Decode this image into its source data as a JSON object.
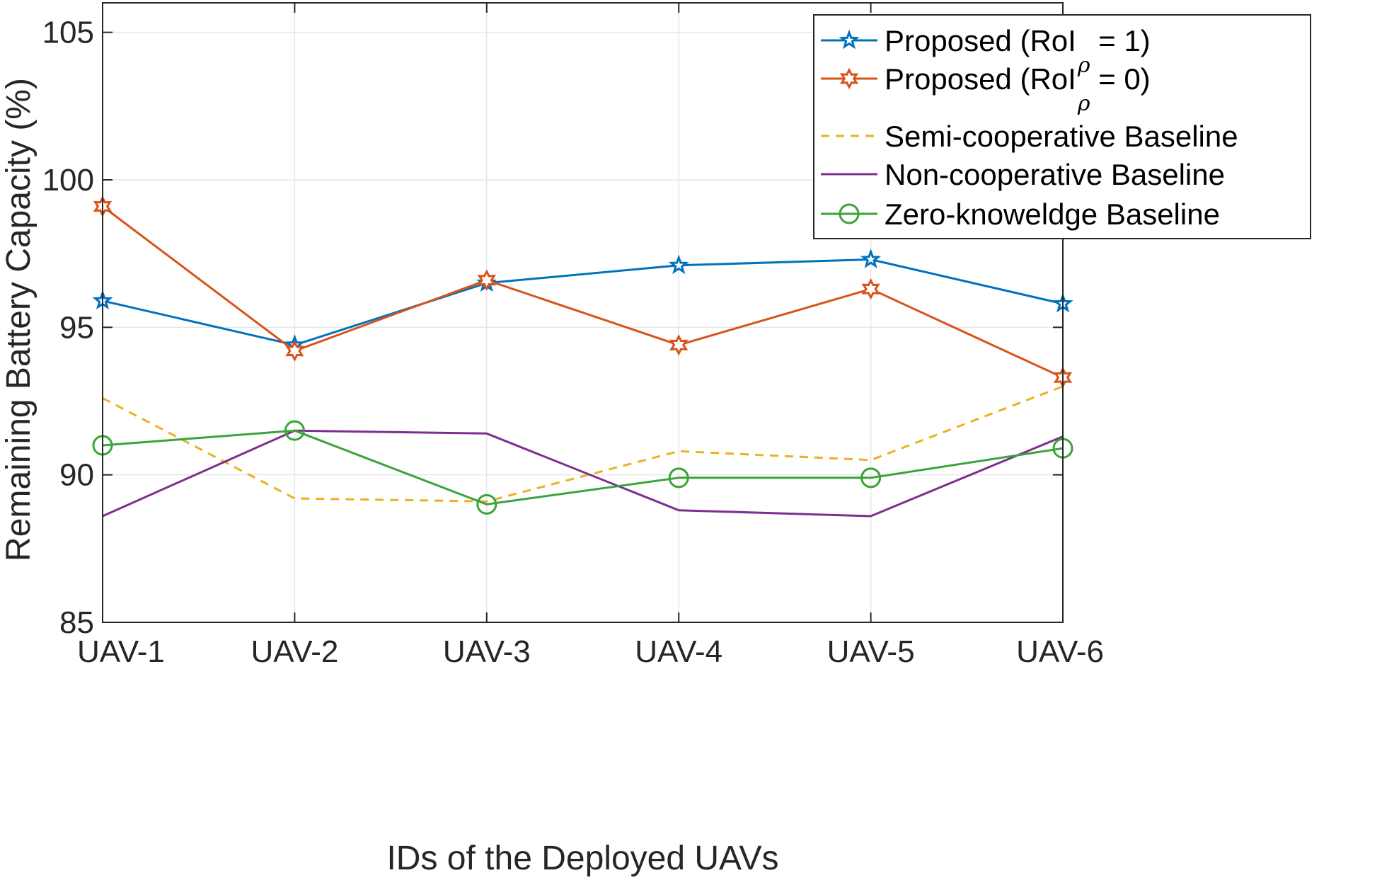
{
  "chart_data": {
    "type": "line",
    "title": "",
    "xlabel": "IDs of the Deployed UAVs",
    "ylabel": "Remaining Battery Capacity (%)",
    "categories": [
      "UAV-1",
      "UAV-2",
      "UAV-3",
      "UAV-4",
      "UAV-5",
      "UAV-6"
    ],
    "ylim": [
      85,
      106
    ],
    "yticks": [
      85,
      90,
      95,
      100,
      105
    ],
    "ytick_labels": [
      "85",
      "90",
      "95",
      "100",
      "105"
    ],
    "grid": true,
    "legend_position": "top-right",
    "series": [
      {
        "name": "Proposed (RoI_ρ = 1)",
        "legend_main": "Proposed (RoI",
        "legend_sub": "ρ",
        "legend_tail": " = 1)",
        "color": "#0072BD",
        "style": "solid",
        "marker": "star",
        "values": [
          95.9,
          94.4,
          96.5,
          97.1,
          97.3,
          95.8
        ]
      },
      {
        "name": "Proposed (RoI_ρ = 0)",
        "legend_main": "Proposed (RoI",
        "legend_sub": "ρ",
        "legend_tail": " = 0)",
        "color": "#D95319",
        "style": "solid",
        "marker": "hexagram",
        "values": [
          99.1,
          94.2,
          96.6,
          94.4,
          96.3,
          93.3
        ]
      },
      {
        "name": "Semi-cooperative Baseline",
        "color": "#EDB120",
        "style": "dashed",
        "marker": "none",
        "values": [
          92.6,
          89.2,
          89.1,
          90.8,
          90.5,
          93.0
        ]
      },
      {
        "name": "Non-cooperative Baseline",
        "color": "#7E2F8E",
        "style": "solid",
        "marker": "none",
        "values": [
          88.6,
          91.5,
          91.4,
          88.8,
          88.6,
          91.3
        ]
      },
      {
        "name": "Zero-knoweldge Baseline",
        "color": "#3AA33A",
        "style": "solid",
        "marker": "circle",
        "values": [
          91.0,
          91.5,
          89.0,
          89.9,
          89.9,
          90.9
        ]
      }
    ]
  }
}
